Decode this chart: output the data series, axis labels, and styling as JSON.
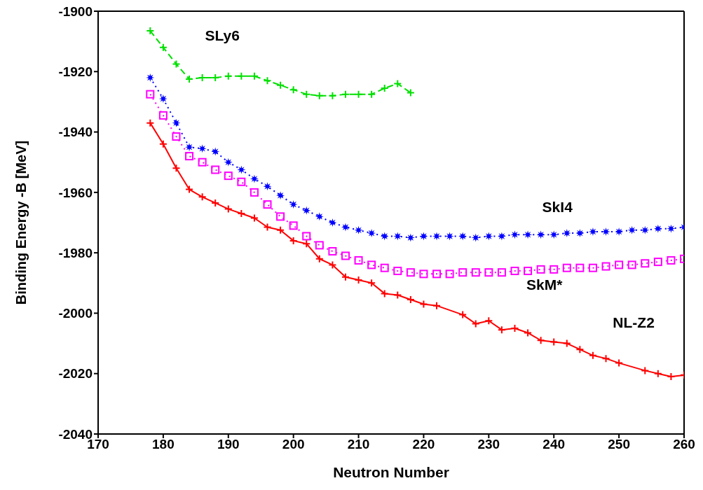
{
  "chart_data": {
    "type": "line",
    "xlabel": "Neutron Number",
    "ylabel": "Binding Energy -B [MeV]",
    "x": [
      178,
      180,
      182,
      184,
      186,
      188,
      190,
      192,
      194,
      196,
      198,
      200,
      202,
      204,
      206,
      208,
      210,
      212,
      214,
      216,
      218,
      220,
      222,
      224,
      226,
      228,
      230,
      232,
      234,
      236,
      238,
      240,
      242,
      244,
      246,
      248,
      250,
      252,
      254,
      256,
      258,
      260
    ],
    "series": [
      {
        "name": "SLy6",
        "color": "#00e000",
        "marker": "cross",
        "line_style": "dashed",
        "x": [
          178,
          180,
          182,
          184,
          186,
          188,
          190,
          192,
          194,
          196,
          198,
          200,
          202,
          204,
          206,
          208,
          210,
          212,
          214,
          216,
          218
        ],
        "values": [
          -1906.5,
          -1912,
          -1917.5,
          -1922.5,
          -1922,
          -1922,
          -1921.5,
          -1921.5,
          -1921.5,
          -1923,
          -1924.5,
          -1926,
          -1927.5,
          -1928,
          -1928,
          -1927.5,
          -1927.5,
          -1927.5,
          -1925.5,
          -1924,
          -1927
        ]
      },
      {
        "name": "SkI4",
        "color": "#0000ff",
        "marker": "star",
        "line_style": "dotted",
        "values": [
          -1922,
          -1929,
          -1937,
          -1945,
          -1945.5,
          -1946.5,
          -1950,
          -1952.5,
          -1955.5,
          -1958,
          -1961,
          -1964,
          -1966,
          -1968,
          -1970,
          -1971.5,
          -1972.5,
          -1973.5,
          -1974.5,
          -1974.5,
          -1975,
          -1974.5,
          -1974.5,
          -1974.5,
          -1974.5,
          -1975,
          -1974.5,
          -1974.5,
          -1974,
          -1974,
          -1974,
          -1974,
          -1973.5,
          -1973.5,
          -1973,
          -1973,
          -1973,
          -1972.5,
          -1972.5,
          -1972,
          -1972,
          -1971.5
        ]
      },
      {
        "name": "SkM*",
        "color": "#ff00ff",
        "marker": "square",
        "line_style": "dotted",
        "values": [
          -1927.5,
          -1934.5,
          -1941.5,
          -1948,
          -1950,
          -1952.5,
          -1954.5,
          -1956.5,
          -1960,
          -1964,
          -1968,
          -1971,
          -1974.5,
          -1977.5,
          -1979.5,
          -1981,
          -1982.5,
          -1984,
          -1985,
          -1986,
          -1986.5,
          -1987,
          -1987,
          -1987,
          -1986.5,
          -1986.5,
          -1986.5,
          -1986.5,
          -1986,
          -1986,
          -1985.5,
          -1985.5,
          -1985,
          -1985,
          -1985,
          -1984.5,
          -1984,
          -1984,
          -1983.5,
          -1983,
          -1982.5,
          -1982
        ]
      },
      {
        "name": "NL-Z2",
        "color": "#ff0000",
        "marker": "cross",
        "line_style": "solid",
        "x": [
          178,
          180,
          182,
          184,
          186,
          188,
          190,
          192,
          194,
          196,
          198,
          200,
          202,
          204,
          206,
          208,
          210,
          212,
          214,
          216,
          218,
          220,
          222,
          226,
          228,
          230,
          232,
          234,
          236,
          238,
          240,
          242,
          244,
          246,
          248,
          250,
          254,
          256,
          258,
          260
        ],
        "values": [
          -1937,
          -1944,
          -1952,
          -1959,
          -1961.5,
          -1963.5,
          -1965.5,
          -1967,
          -1968.5,
          -1971.5,
          -1972.5,
          -1976,
          -1977,
          -1982,
          -1984,
          -1988,
          -1989,
          -1990,
          -1993.5,
          -1994,
          -1995.5,
          -1997,
          -1997.5,
          -2000.5,
          -2003.5,
          -2002.5,
          -2005.5,
          -2005,
          -2006.5,
          -2009,
          -2009.5,
          -2010,
          -2012,
          -2014,
          -2015,
          -2016.5,
          -2019,
          -2020,
          -2021,
          -2020.5
        ]
      }
    ],
    "xlim": [
      170,
      260
    ],
    "xticks": [
      170,
      180,
      190,
      200,
      210,
      220,
      230,
      240,
      250,
      260
    ],
    "ylim": [
      -2040,
      -1900
    ],
    "yticks": [
      -2040,
      -2020,
      -2000,
      -1980,
      -1960,
      -1940,
      -1920,
      -1900
    ],
    "legend": false
  }
}
